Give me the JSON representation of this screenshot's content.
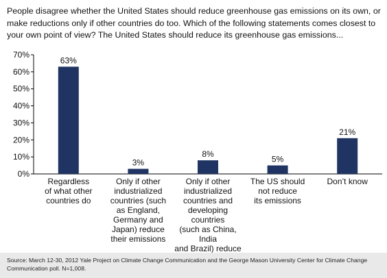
{
  "question": "People disagree whether the United States should reduce greenhouse gas emissions on its own, or make reductions only if other countries do too. Which of the following statements comes closest to your own point of view? The United States should reduce its greenhouse gas emissions...",
  "source": "Source: March 12-30, 2012 Yale Project on Climate Change Communication and the George Mason University Center for Climate Change Communication poll.  N=1,008.",
  "colors": {
    "bar": "#1f3462",
    "axis": "#000000",
    "footer_bg": "#e9e9ea"
  },
  "chart_data": {
    "type": "bar",
    "title": "",
    "xlabel": "",
    "ylabel": "",
    "ylim": [
      0,
      70
    ],
    "grid": false,
    "yticks": [
      {
        "value": 0,
        "label": "0%"
      },
      {
        "value": 10,
        "label": "10%"
      },
      {
        "value": 20,
        "label": "20%"
      },
      {
        "value": 30,
        "label": "30%"
      },
      {
        "value": 40,
        "label": "40%"
      },
      {
        "value": 50,
        "label": "50%"
      },
      {
        "value": 60,
        "label": "60%"
      },
      {
        "value": 70,
        "label": "70%"
      }
    ],
    "categories": [
      "Regardless\nof what other\ncountries do",
      "Only if other\nindustrialized\ncountries (such\nas England,\nGermany and\nJapan) reduce\ntheir emissions",
      "Only if other\nindustrialized\ncountries and\ndeveloping countries\n(such as China, India\nand Brazil) reduce\ntheir emissions",
      "The US should\nnot reduce\nits emissions",
      "Don’t know"
    ],
    "values": [
      63,
      3,
      8,
      5,
      21
    ],
    "value_labels": [
      "63%",
      "3%",
      "8%",
      "5%",
      "21%"
    ]
  }
}
